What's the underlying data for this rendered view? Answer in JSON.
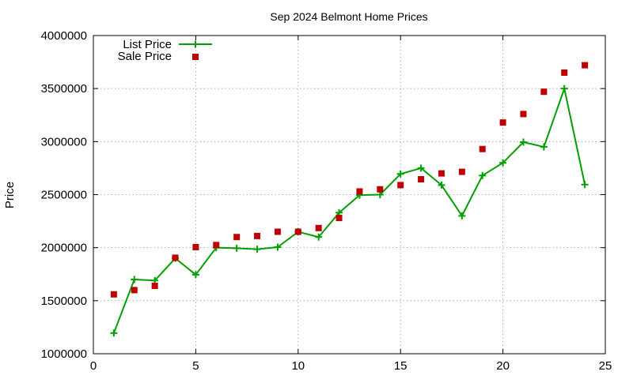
{
  "chart_data": {
    "type": "line",
    "title": "Sep 2024 Belmont Home Prices",
    "xlabel": "",
    "ylabel": "Price",
    "xlim": [
      0,
      25
    ],
    "ylim": [
      1000000,
      4000000
    ],
    "xticks": [
      "0",
      "5",
      "10",
      "15",
      "20",
      "25"
    ],
    "yticks": [
      "1000000",
      "1500000",
      "2000000",
      "2500000",
      "3000000",
      "3500000",
      "4000000"
    ],
    "grid": true,
    "legend_position": "top-left",
    "x": [
      1,
      2,
      3,
      4,
      5,
      6,
      7,
      8,
      9,
      10,
      11,
      12,
      13,
      14,
      15,
      16,
      17,
      18,
      19,
      20,
      21,
      22,
      23,
      24
    ],
    "series": [
      {
        "name": "List Price",
        "style": "line-plus",
        "color": "#00a000",
        "values": [
          1195000,
          1700000,
          1690000,
          1900000,
          1745000,
          2000000,
          1995000,
          1985000,
          2005000,
          2150000,
          2100000,
          2330000,
          2495000,
          2500000,
          2695000,
          2750000,
          2590000,
          2300000,
          2680000,
          2800000,
          2995000,
          2950000,
          3500000,
          2595000
        ]
      },
      {
        "name": "Sale Price",
        "style": "square-points",
        "color": "#c00000",
        "values": [
          1560000,
          1600000,
          1640000,
          1905000,
          2005000,
          2025000,
          2100000,
          2110000,
          2150000,
          2150000,
          2185000,
          2280000,
          2530000,
          2550000,
          2590000,
          2645000,
          2700000,
          2715000,
          2930000,
          3180000,
          3260000,
          3470000,
          3650000,
          3720000
        ]
      }
    ]
  }
}
